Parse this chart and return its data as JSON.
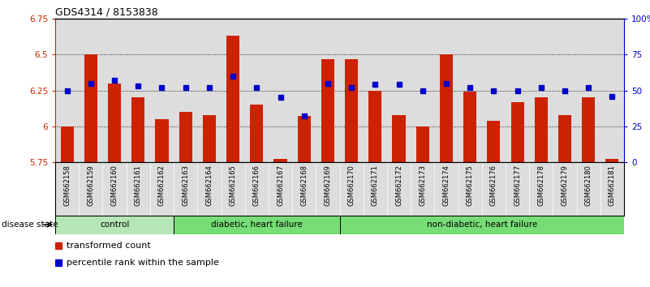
{
  "title": "GDS4314 / 8153838",
  "samples": [
    "GSM662158",
    "GSM662159",
    "GSM662160",
    "GSM662161",
    "GSM662162",
    "GSM662163",
    "GSM662164",
    "GSM662165",
    "GSM662166",
    "GSM662167",
    "GSM662168",
    "GSM662169",
    "GSM662170",
    "GSM662171",
    "GSM662172",
    "GSM662173",
    "GSM662174",
    "GSM662175",
    "GSM662176",
    "GSM662177",
    "GSM662178",
    "GSM662179",
    "GSM662180",
    "GSM662181"
  ],
  "red_values": [
    6.0,
    6.5,
    6.3,
    6.2,
    6.05,
    6.1,
    6.08,
    6.63,
    6.15,
    5.77,
    6.07,
    6.47,
    6.47,
    6.25,
    6.08,
    6.0,
    6.5,
    6.24,
    6.04,
    6.17,
    6.2,
    6.08,
    6.2,
    5.77
  ],
  "blue_pct": [
    50,
    55,
    57,
    53,
    52,
    52,
    52,
    60,
    52,
    45,
    32,
    55,
    52,
    54,
    54,
    50,
    55,
    52,
    50,
    50,
    52,
    50,
    52,
    46
  ],
  "group_info": [
    {
      "start": 0,
      "end": 4,
      "label": "control",
      "color": "#b5e6b5"
    },
    {
      "start": 5,
      "end": 11,
      "label": "diabetic, heart failure",
      "color": "#77dd77"
    },
    {
      "start": 12,
      "end": 23,
      "label": "non-diabetic, heart failure",
      "color": "#77dd77"
    }
  ],
  "ylim_left": [
    5.75,
    6.75
  ],
  "ylim_right": [
    0,
    100
  ],
  "yticks_left": [
    5.75,
    6.0,
    6.25,
    6.5,
    6.75
  ],
  "yticks_right": [
    0,
    25,
    50,
    75,
    100
  ],
  "ytick_labels_left": [
    "5.75",
    "6",
    "6.25",
    "6.5",
    "6.75"
  ],
  "ytick_labels_right": [
    "0",
    "25",
    "50",
    "75",
    "100%"
  ],
  "hgrid_values": [
    6.0,
    6.25,
    6.5
  ],
  "bar_color": "#cc2200",
  "marker_color": "#0000cc",
  "legend_red": "transformed count",
  "legend_blue": "percentile rank within the sample",
  "disease_state_label": "disease state",
  "bg_color": "#dddddd"
}
